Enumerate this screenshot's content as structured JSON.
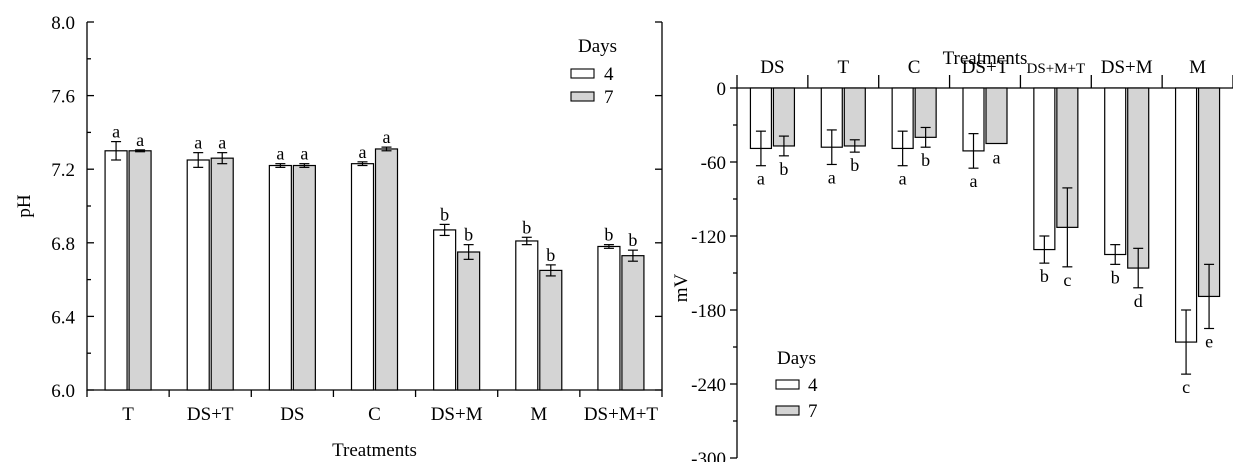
{
  "chart_data": [
    {
      "type": "bar",
      "xlabel": "Treatments",
      "ylabel": "pH",
      "ylim": [
        6.0,
        8.0
      ],
      "yticks": [
        "6.0",
        "6.4",
        "6.8",
        "7.2",
        "7.6",
        "8.0"
      ],
      "categories": [
        "T",
        "DS+T",
        "DS",
        "C",
        "DS+M",
        "M",
        "DS+M+T"
      ],
      "legend": {
        "title": "Days",
        "placement": "top-right"
      },
      "series": [
        {
          "name": "4",
          "color": "#ffffff",
          "values": [
            7.3,
            7.25,
            7.22,
            7.23,
            6.87,
            6.81,
            6.78
          ],
          "errors": [
            0.05,
            0.04,
            0.01,
            0.01,
            0.03,
            0.02,
            0.01
          ],
          "labels": [
            "a",
            "a",
            "a",
            "a",
            "b",
            "b",
            "b"
          ]
        },
        {
          "name": "7",
          "color": "#d4d4d4",
          "values": [
            7.3,
            7.26,
            7.22,
            7.31,
            6.75,
            6.65,
            6.73
          ],
          "errors": [
            0.005,
            0.03,
            0.01,
            0.01,
            0.04,
            0.03,
            0.03
          ],
          "labels": [
            "a",
            "a",
            "a",
            "a",
            "b",
            "b",
            "b"
          ]
        }
      ]
    },
    {
      "type": "bar",
      "xlabel": "Treatments",
      "ylabel": "mV",
      "ylim": [
        -300,
        0
      ],
      "yticks": [
        "0",
        "-60",
        "-120",
        "-180",
        "-240",
        "-300"
      ],
      "categories": [
        "DS",
        "T",
        "C",
        "DS+T",
        "DS+M+T",
        "DS+M",
        "M"
      ],
      "legend": {
        "title": "Days",
        "placement": "bottom-left"
      },
      "series": [
        {
          "name": "4",
          "color": "#ffffff",
          "values": [
            -49,
            -48,
            -49,
            -51,
            -131,
            -135,
            -206
          ],
          "errors": [
            14,
            14,
            14,
            14,
            11,
            8,
            26
          ],
          "labels": [
            "a",
            "a",
            "a",
            "a",
            "b",
            "b",
            "c"
          ]
        },
        {
          "name": "7",
          "color": "#d4d4d4",
          "values": [
            -47,
            -47,
            -40,
            -45,
            -113,
            -146,
            -169
          ],
          "errors": [
            8,
            5,
            8,
            0,
            32,
            16,
            26
          ],
          "labels": [
            "b",
            "b",
            "b",
            "a",
            "c",
            "d",
            "e"
          ]
        }
      ]
    }
  ]
}
